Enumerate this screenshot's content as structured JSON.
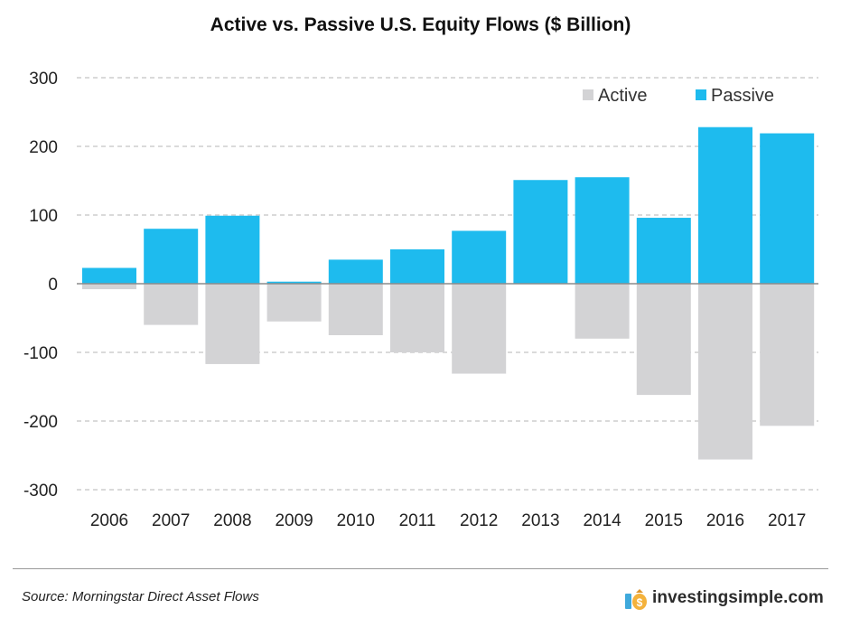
{
  "chart_data": {
    "type": "bar",
    "title": "Active vs. Passive U.S. Equity Flows ($ Billion)",
    "xlabel": "",
    "ylabel": "",
    "categories": [
      "2006",
      "2007",
      "2008",
      "2009",
      "2010",
      "2011",
      "2012",
      "2013",
      "2014",
      "2015",
      "2016",
      "2017"
    ],
    "series": [
      {
        "name": "Active",
        "color": "#d3d3d5",
        "values": [
          -8,
          -60,
          -117,
          -55,
          -75,
          -100,
          -131,
          0,
          -80,
          -162,
          -256,
          -207
        ]
      },
      {
        "name": "Passive",
        "color": "#1ebbee",
        "values": [
          23,
          80,
          99,
          3,
          35,
          50,
          77,
          151,
          155,
          96,
          228,
          219
        ]
      }
    ],
    "ylim": [
      -300,
      300
    ],
    "yticks": [
      300,
      200,
      100,
      0,
      -100,
      -200,
      -300
    ],
    "ytick_labels": [
      "300",
      "200",
      "100",
      "0",
      "-100",
      "-200",
      "-300"
    ],
    "grid": true,
    "legend_position": "top-right",
    "source": "Source: Morningstar Direct Asset Flows"
  },
  "branding": {
    "text": "investingsimple.com",
    "icon": "money-bag-icon",
    "accent_color": "#f4b23c"
  }
}
